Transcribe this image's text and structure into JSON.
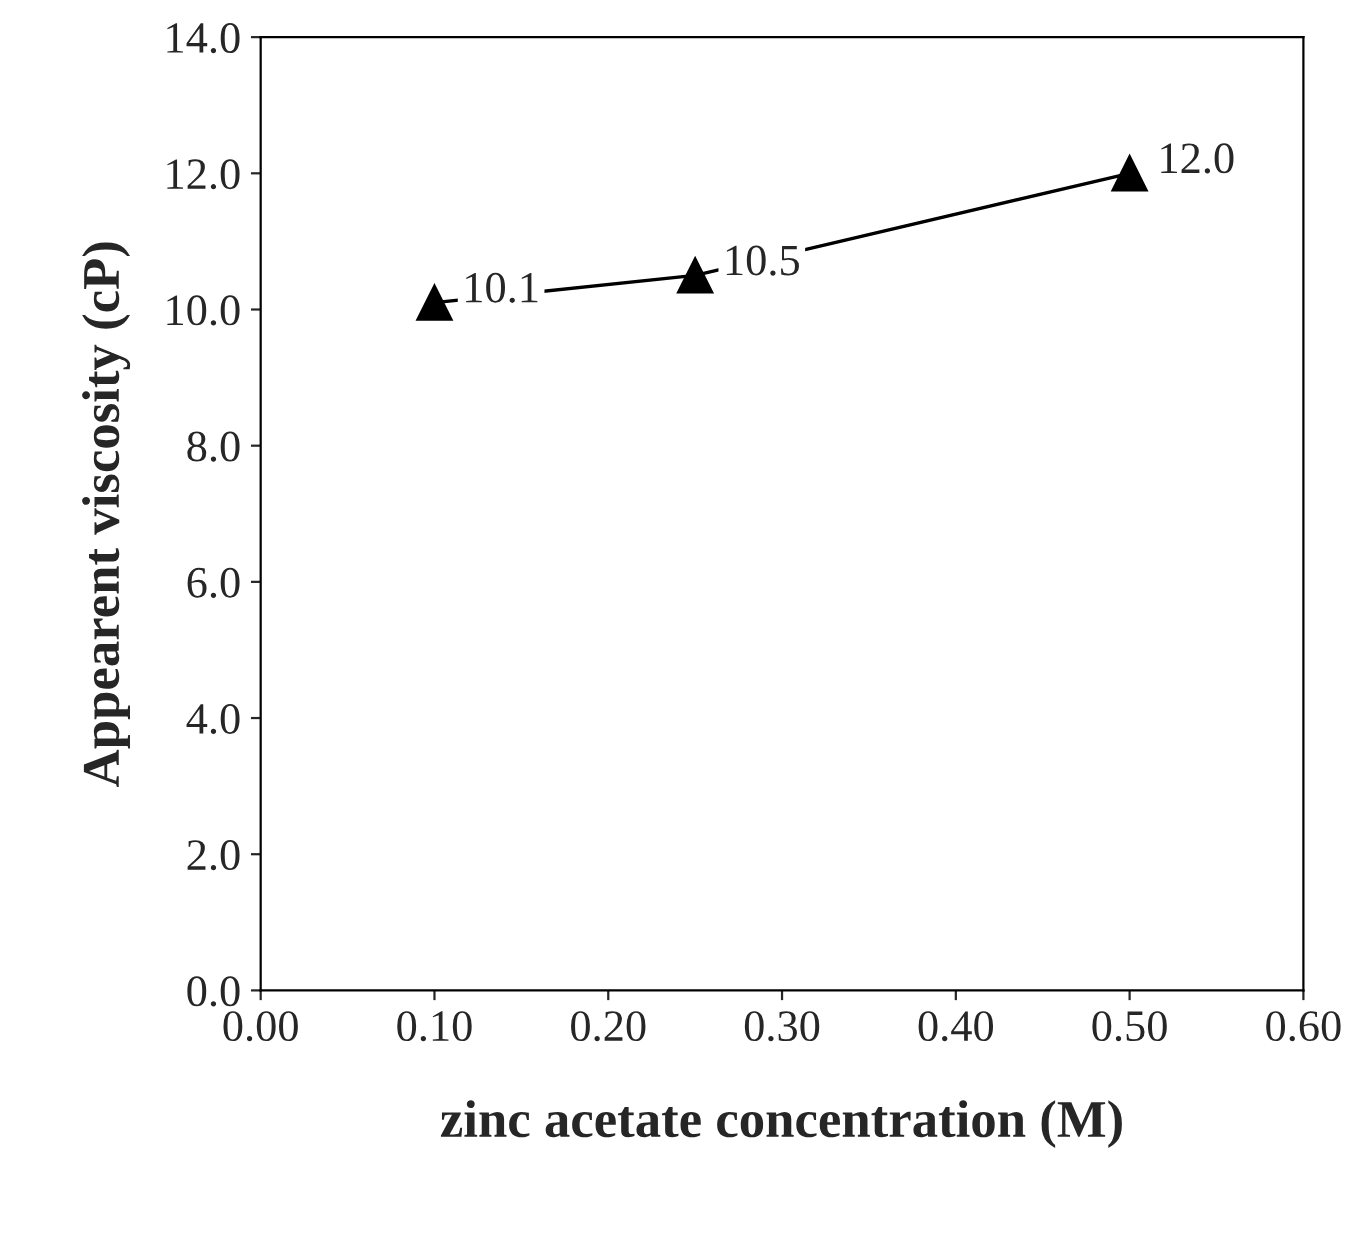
{
  "chart_data": {
    "type": "line",
    "xlabel": "zinc acetate concentration (M)",
    "ylabel": "Appearent viscosity (cP)",
    "x": [
      0.1,
      0.25,
      0.5
    ],
    "series": [
      {
        "color": "#000000",
        "values": [
          10.1,
          10.5,
          12.0
        ],
        "value_labels": [
          "10.1",
          "10.5",
          "12.0"
        ]
      }
    ],
    "xlim": [
      0,
      0.6
    ],
    "xticks": [
      {
        "value": 0,
        "label": "0.00"
      },
      {
        "value": 0.1,
        "label": "0.10"
      },
      {
        "value": 0.2,
        "label": "0.20"
      },
      {
        "value": 0.3,
        "label": "0.30"
      },
      {
        "value": 0.4,
        "label": "0.40"
      },
      {
        "value": 0.5,
        "label": "0.50"
      },
      {
        "value": 0.6,
        "label": "0.60"
      }
    ],
    "ylim": [
      0,
      14
    ],
    "yticks": [
      {
        "value": 0,
        "label": "0.0"
      },
      {
        "value": 2,
        "label": "2.0"
      },
      {
        "value": 4,
        "label": "4.0"
      },
      {
        "value": 6,
        "label": "6.0"
      },
      {
        "value": 8,
        "label": "8.0"
      },
      {
        "value": 10,
        "label": "10.0"
      },
      {
        "value": 12,
        "label": "12.0"
      },
      {
        "value": 14,
        "label": "14.0"
      }
    ],
    "grid": false,
    "marker": "triangle",
    "line_style": "solid"
  }
}
